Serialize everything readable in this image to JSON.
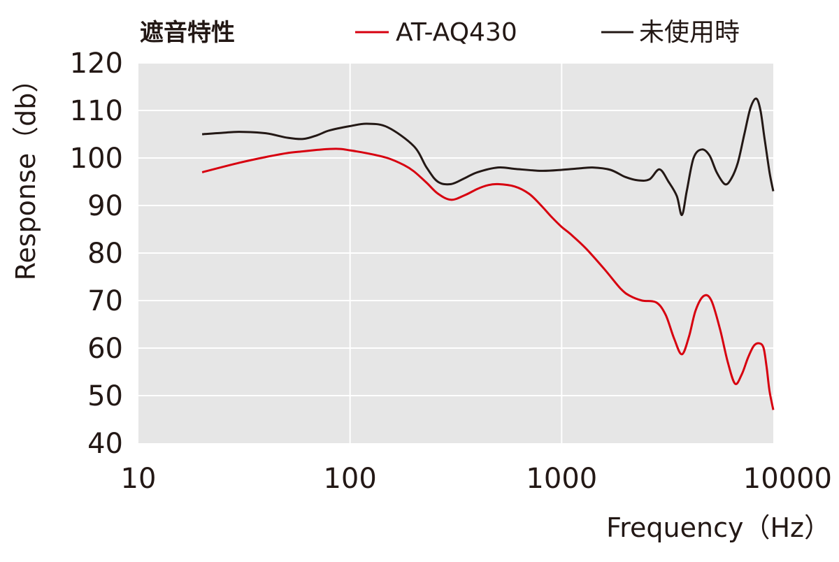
{
  "chart_data": {
    "type": "line",
    "title": "遮音特性",
    "xlabel": "Frequency（Hz）",
    "ylabel": "Response（db）",
    "x_scale": "log",
    "xlim": [
      10,
      10000
    ],
    "ylim": [
      40,
      120
    ],
    "x_ticks": [
      10,
      100,
      1000,
      10000
    ],
    "x_tick_labels": [
      "10",
      "100",
      "1000",
      "10000"
    ],
    "y_ticks": [
      40,
      50,
      60,
      70,
      80,
      90,
      100,
      110,
      120
    ],
    "y_tick_labels": [
      "40",
      "50",
      "60",
      "70",
      "80",
      "90",
      "100",
      "110",
      "120"
    ],
    "grid": true,
    "legend_position": "top",
    "background_color": "#e6e6e6",
    "series": [
      {
        "name": "AT-AQ430",
        "color": "#d7000f",
        "x": [
          20,
          30,
          40,
          50,
          60,
          70,
          80,
          90,
          100,
          120,
          150,
          180,
          200,
          230,
          260,
          300,
          350,
          400,
          450,
          500,
          600,
          700,
          800,
          900,
          1000,
          1100,
          1300,
          1600,
          1900,
          2100,
          2400,
          2800,
          3100,
          3400,
          3700,
          4000,
          4300,
          4700,
          5100,
          5600,
          6100,
          6600,
          7100,
          7600,
          8100,
          8600,
          9000,
          9300,
          9600,
          10000
        ],
        "y": [
          97,
          99,
          100.2,
          101,
          101.4,
          101.7,
          101.9,
          101.9,
          101.6,
          101,
          100,
          98.5,
          97.2,
          94.8,
          92.5,
          91.2,
          92.2,
          93.5,
          94.3,
          94.5,
          94,
          92.5,
          90,
          87.5,
          85.5,
          84,
          81,
          76.5,
          72.5,
          71,
          70,
          69.6,
          67,
          62,
          58.7,
          62.5,
          68,
          71,
          70,
          64,
          57,
          52.5,
          54.5,
          58,
          60.5,
          61,
          60,
          56,
          51,
          47
        ]
      },
      {
        "name": "未使用時",
        "color": "#231815",
        "x": [
          20,
          25,
          30,
          40,
          50,
          60,
          70,
          80,
          100,
          120,
          150,
          200,
          230,
          260,
          300,
          350,
          400,
          500,
          600,
          800,
          1000,
          1200,
          1400,
          1700,
          2000,
          2300,
          2600,
          2900,
          3200,
          3500,
          3700,
          3900,
          4200,
          4600,
          5000,
          5400,
          5900,
          6300,
          6800,
          7300,
          7800,
          8300,
          8700,
          9100,
          9600,
          10000
        ],
        "y": [
          105,
          105.3,
          105.5,
          105.2,
          104.3,
          104,
          104.8,
          105.8,
          106.7,
          107.2,
          106.5,
          102.5,
          98,
          95,
          94.5,
          95.8,
          97,
          98,
          97.7,
          97.3,
          97.5,
          97.8,
          98,
          97.5,
          96,
          95.3,
          95.5,
          97.6,
          95,
          92,
          88,
          93,
          100,
          101.8,
          100.5,
          97,
          94.5,
          95.5,
          99,
          105,
          110.5,
          112.5,
          110,
          104,
          97,
          93
        ]
      }
    ]
  }
}
